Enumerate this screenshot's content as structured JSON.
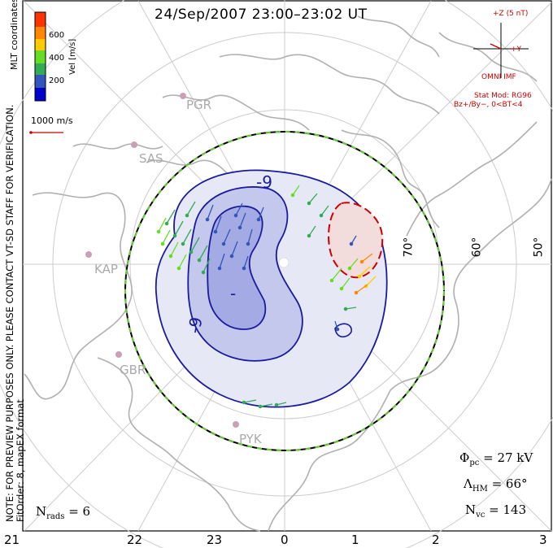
{
  "title": "24/Sep/2007 23:00–23:02 UT",
  "side_note": {
    "line1": "NOTE: FOR PREVIEW PURPOSES ONLY. PLEASE CONTACT VT-SD STAFF FOR VERIFICATION.",
    "line2": "FitOrder: 8, mapEX format"
  },
  "colorbar": {
    "coord_label": "MLT coordinates",
    "unit_label": "Vel [m/s]",
    "ticks": [
      "600",
      "400",
      "200"
    ],
    "colors": [
      "#0000cc",
      "#3355bb",
      "#33aa55",
      "#66dd22",
      "#ffcc00",
      "#ff8800",
      "#ff3300"
    ]
  },
  "reference_vector": "1000 m/s",
  "imf": {
    "bz_label": "+Z (5 nT)",
    "by_label": "+Y",
    "source": "OMNI IMF",
    "model": "Stat Mod: RG96",
    "condition": "Bz+/By−, 0<BT<4",
    "color": "#cc0000"
  },
  "stats": {
    "phi_symbol": "Φ",
    "phi_sub": "pc",
    "phi_value": "= 27 kV",
    "lambda_symbol": "Λ",
    "lambda_sub": "HM",
    "lambda_value": "= 66°",
    "nvc_symbol": "N",
    "nvc_sub": "vc",
    "nvc_value": "= 143",
    "nrads_symbol": "N",
    "nrads_sub": "rads",
    "nrads_value": "= 6"
  },
  "mlt_axis": [
    "21",
    "22",
    "23",
    "0",
    "1",
    "2",
    "3"
  ],
  "latitudes": [
    "70°",
    "60°",
    "50°"
  ],
  "radars": [
    "PGR",
    "SAS",
    "KAP",
    "GBR",
    "PYK"
  ],
  "contour_labels": [
    "-9",
    "-9",
    "-"
  ],
  "colors": {
    "dusk_cell": "#1a1aa0",
    "dawn_cell": "#cc0000",
    "hm_boundary": "#66cc33",
    "continents": "#aaaaaa"
  }
}
